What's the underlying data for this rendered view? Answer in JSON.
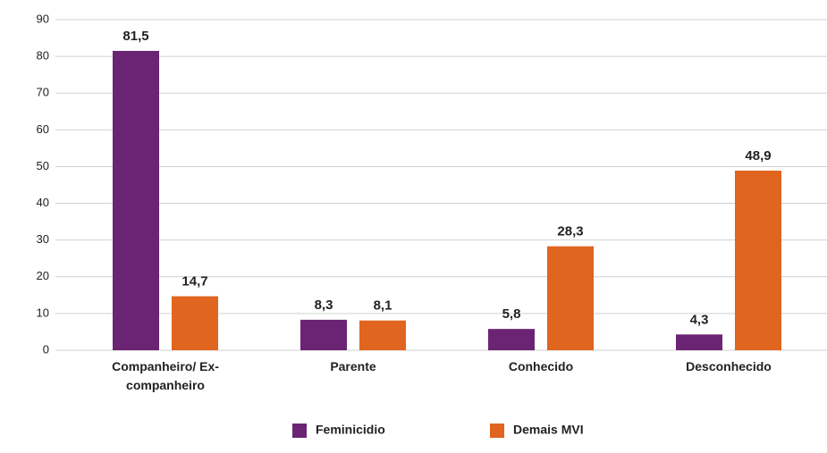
{
  "chart_data": {
    "type": "bar",
    "categories": [
      "Companheiro/ Ex-companheiro",
      "Parente",
      "Conhecido",
      "Desconhecido"
    ],
    "series": [
      {
        "name": "Feminicidio",
        "color": "#6b2473",
        "values": [
          81.5,
          8.3,
          5.8,
          4.3
        ],
        "value_labels": [
          "81,5",
          "8,3",
          "5,8",
          "4,3"
        ]
      },
      {
        "name": "Demais MVI",
        "color": "#e0651f",
        "values": [
          14.7,
          8.1,
          28.3,
          48.9
        ],
        "value_labels": [
          "14,7",
          "8,1",
          "28,3",
          "48,9"
        ]
      }
    ],
    "ylim": [
      0,
      90
    ],
    "yticks": [
      0,
      10,
      20,
      30,
      40,
      50,
      60,
      70,
      80,
      90
    ],
    "grid": true
  }
}
